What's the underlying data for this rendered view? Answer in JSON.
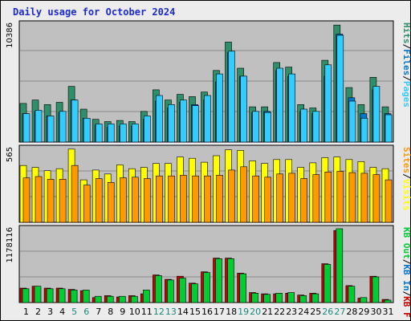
{
  "title": "Daily usage for October 2024",
  "colors": {
    "title": "#1d2bc4",
    "pages": "#33ccff",
    "files": "#0077cc",
    "hits": "#2f8f6b",
    "visits": "#ffff00",
    "sites": "#ff9900",
    "kb": "#00cc33",
    "kb_f": "#cc0000",
    "weekend_label": "#1a8a7a",
    "panel_bg": "#c0c0c0",
    "panel_border": "#000000",
    "sep": "#000000",
    "grid": "#8a8a8a"
  },
  "chart_data": [
    {
      "type": "bar",
      "name": "hits-panel",
      "ymax_label": "10386",
      "ylim": [
        0,
        10386
      ],
      "legend": [
        "Pages",
        "/",
        "Files",
        "/",
        "Hits"
      ],
      "categories": [
        "1",
        "2",
        "3",
        "4",
        "5",
        "6",
        "7",
        "8",
        "9",
        "10",
        "11",
        "12",
        "13",
        "14",
        "15",
        "16",
        "17",
        "18",
        "19",
        "20",
        "21",
        "22",
        "23",
        "24",
        "25",
        "26",
        "27",
        "28",
        "29",
        "30",
        "31"
      ],
      "series": [
        {
          "name": "Hits",
          "values": [
            3400,
            3700,
            3300,
            3500,
            4900,
            2900,
            2000,
            1800,
            1900,
            1800,
            2700,
            4600,
            3700,
            4200,
            4000,
            4400,
            6300,
            8800,
            6500,
            3100,
            3100,
            7000,
            6600,
            3300,
            3000,
            7200,
            10300,
            4800,
            3300,
            5700,
            3100
          ]
        },
        {
          "name": "Files",
          "values": [
            2500,
            2700,
            2300,
            2600,
            3700,
            2100,
            1500,
            1300,
            1400,
            1400,
            2000,
            3600,
            3000,
            3500,
            3300,
            3700,
            5300,
            7900,
            5800,
            2600,
            2700,
            6300,
            5800,
            2700,
            2500,
            5800,
            9500,
            3900,
            2500,
            4600,
            2500
          ]
        },
        {
          "name": "Pages",
          "values": [
            2500,
            2800,
            2300,
            2700,
            3700,
            2100,
            1600,
            1600,
            1600,
            1600,
            2300,
            4100,
            3300,
            3700,
            3200,
            4100,
            6000,
            8000,
            5800,
            2700,
            2600,
            6500,
            6000,
            2900,
            2700,
            6800,
            9400,
            3600,
            2100,
            4900,
            2400
          ]
        }
      ]
    },
    {
      "type": "bar",
      "name": "visits-panel",
      "ymax_label": "565",
      "ylim": [
        0,
        565
      ],
      "legend": [
        "Visits",
        "/",
        "Sites"
      ],
      "categories": [
        "1",
        "2",
        "3",
        "4",
        "5",
        "6",
        "7",
        "8",
        "9",
        "10",
        "11",
        "12",
        "13",
        "14",
        "15",
        "16",
        "17",
        "18",
        "19",
        "20",
        "21",
        "22",
        "23",
        "24",
        "25",
        "26",
        "27",
        "28",
        "29",
        "30",
        "31"
      ],
      "series": [
        {
          "name": "Visits",
          "values": [
            435,
            420,
            395,
            410,
            560,
            325,
            400,
            370,
            440,
            410,
            420,
            450,
            450,
            500,
            490,
            460,
            510,
            555,
            550,
            470,
            450,
            480,
            480,
            420,
            455,
            495,
            500,
            480,
            465,
            420,
            410
          ]
        },
        {
          "name": "Sites",
          "values": [
            340,
            350,
            330,
            330,
            435,
            285,
            335,
            305,
            340,
            345,
            335,
            355,
            355,
            360,
            355,
            355,
            360,
            400,
            425,
            355,
            345,
            370,
            375,
            335,
            365,
            385,
            390,
            380,
            375,
            365,
            325
          ]
        }
      ]
    },
    {
      "type": "bar",
      "name": "kbytes-panel",
      "ymax_label": "1178116",
      "ylim": [
        0,
        1178116
      ],
      "legend": [
        "KB",
        "F",
        "/",
        "KB",
        "In",
        "/",
        "KB",
        "Out"
      ],
      "categories": [
        "1",
        "2",
        "3",
        "4",
        "5",
        "6",
        "7",
        "8",
        "9",
        "10",
        "11",
        "12",
        "13",
        "14",
        "15",
        "16",
        "17",
        "18",
        "19",
        "20",
        "21",
        "22",
        "23",
        "24",
        "25",
        "26",
        "27",
        "28",
        "29",
        "30",
        "31"
      ],
      "series": [
        {
          "name": "KB F",
          "values": [
            230000,
            260000,
            230000,
            230000,
            210000,
            190000,
            80000,
            110000,
            90000,
            110000,
            140000,
            440000,
            370000,
            420000,
            310000,
            490000,
            710000,
            710000,
            470000,
            160000,
            140000,
            140000,
            150000,
            120000,
            150000,
            620000,
            1150000,
            270000,
            70000,
            420000,
            50000
          ]
        },
        {
          "name": "KB In",
          "values": [
            220000,
            260000,
            220000,
            220000,
            200000,
            200000,
            100000,
            100000,
            100000,
            100000,
            200000,
            430000,
            360000,
            390000,
            300000,
            480000,
            700000,
            700000,
            460000,
            150000,
            130000,
            150000,
            160000,
            110000,
            140000,
            610000,
            1178116,
            260000,
            80000,
            410000,
            40000
          ]
        }
      ]
    }
  ],
  "day_labels": [
    "1",
    "2",
    "3",
    "4",
    "5",
    "6",
    "7",
    "8",
    "9",
    "10",
    "11",
    "12",
    "13",
    "14",
    "15",
    "16",
    "17",
    "18",
    "19",
    "20",
    "21",
    "22",
    "23",
    "24",
    "25",
    "26",
    "27",
    "28",
    "29",
    "30",
    "31"
  ],
  "weekend_days": [
    "5",
    "6",
    "12",
    "13",
    "19",
    "20",
    "26",
    "27"
  ]
}
